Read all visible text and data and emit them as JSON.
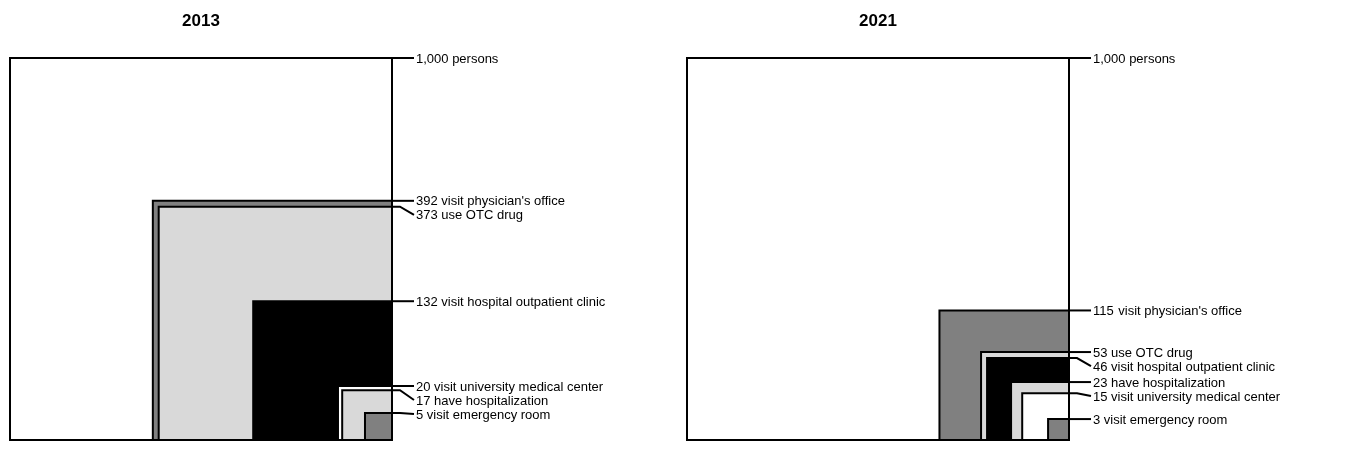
{
  "chart_data": [
    {
      "type": "other",
      "title": "2013",
      "categories": [
        "persons",
        "visit physician's office",
        "use OTC drug",
        "visit hospital outpatient clinic",
        "visit university medical center",
        "have hospitalization",
        "visit emergency room"
      ],
      "values": [
        1000,
        392,
        373,
        132,
        20,
        17,
        5
      ],
      "value_labels": [
        "1,000",
        "392",
        "373",
        "132",
        "20",
        "17",
        "5"
      ],
      "colors": [
        "#ffffff",
        "#808080",
        "#d9d9d9",
        "#000000",
        "#ffffff",
        "#d9d9d9",
        "#808080"
      ]
    },
    {
      "type": "other",
      "title": "2021",
      "categories": [
        "persons",
        "visit physician's office",
        "use OTC drug",
        "visit hospital outpatient clinic",
        "have hospitalization",
        "visit university medical center",
        "visit emergency room"
      ],
      "values": [
        1000,
        115,
        53,
        46,
        23,
        15,
        3
      ],
      "value_labels": [
        "1,000",
        "115",
        "53",
        "46",
        "23",
        "15",
        "3"
      ],
      "colors": [
        "#ffffff",
        "#808080",
        "#d9d9d9",
        "#000000",
        "#d9d9d9",
        "#ffffff",
        "#808080"
      ]
    }
  ]
}
